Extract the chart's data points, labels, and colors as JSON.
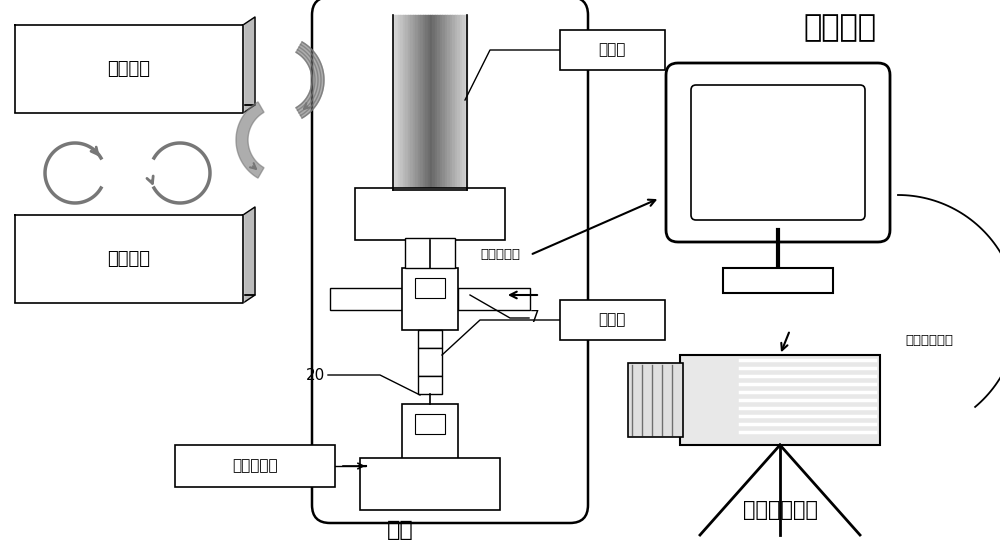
{
  "bg_color": "#ffffff",
  "lc": "#000000",
  "gc": "#999999",
  "lgc": "#bbbbbb",
  "dgc": "#777777",
  "labels": {
    "hydraulic1": "液压系统",
    "hydraulic2": "液压系统",
    "actuator": "作动缸",
    "frame": "机架",
    "control_system": "控制系统",
    "high_speed_camera": "高速摄像系统",
    "test_piece": "试验件",
    "dynamic_sensor": "动载荷传感",
    "control_machine": "控制试验机",
    "trigger": "触发高速摄像",
    "num7": "7",
    "num20": "20"
  },
  "figsize": [
    10.0,
    5.54
  ],
  "dpi": 100
}
